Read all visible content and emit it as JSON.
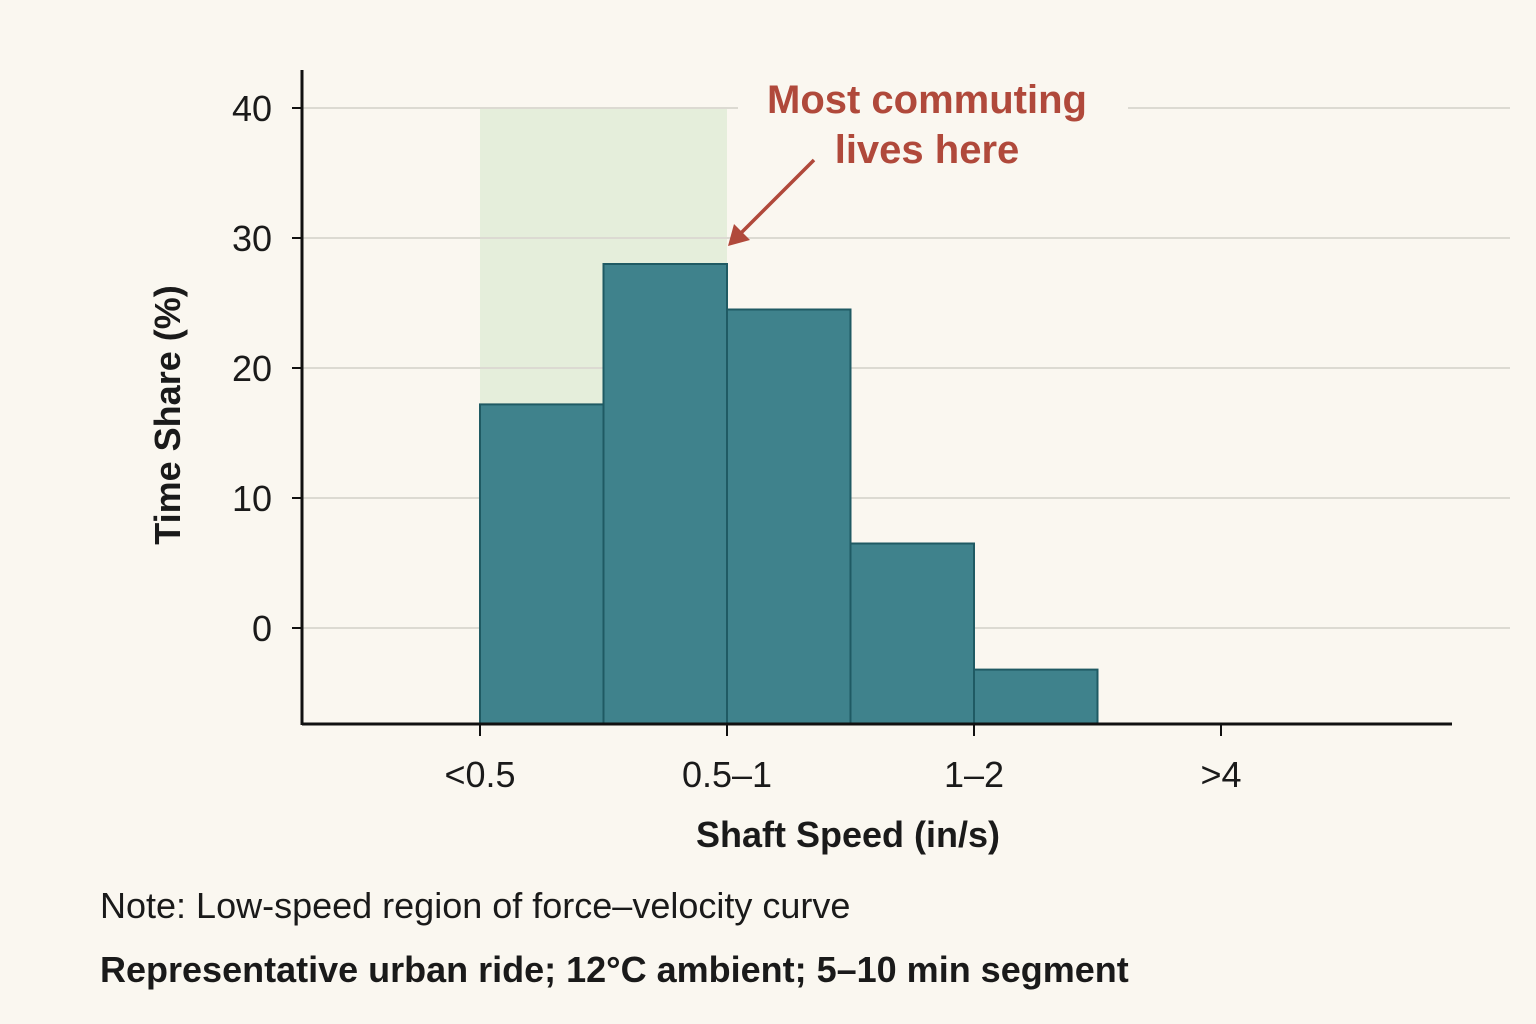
{
  "chart_data": {
    "type": "bar",
    "title": "",
    "xlabel": "Shaft Speed (in/s)",
    "ylabel": "Time Share (%)",
    "x_tick_labels": [
      "<0.5",
      "0.5–1",
      "1–2",
      ">4"
    ],
    "y_ticks": [
      0,
      10,
      20,
      30,
      40
    ],
    "ylim": [
      -7.4,
      43
    ],
    "grid": true,
    "bins": [
      {
        "from_tick": 0,
        "to_tick": 0.5,
        "value": 17.2
      },
      {
        "from_tick": 0.5,
        "to_tick": 1,
        "value": 28
      },
      {
        "from_tick": 1,
        "to_tick": 1.5,
        "value": 24.5
      },
      {
        "from_tick": 1.5,
        "to_tick": 2,
        "value": 6.5
      },
      {
        "from_tick": 2,
        "to_tick": 2.5,
        "value": -3.2
      }
    ],
    "highlight_region": {
      "from_label": "<0.5",
      "to_label": "0.5–1",
      "upper": 40
    },
    "annotation": {
      "line1": "Most commuting",
      "line2": "lives here"
    },
    "note": "Note: Low-speed region of force–velocity curve",
    "subnote": "Representative urban ride; 12°C ambient; 5–10 min segment",
    "colors": {
      "background": "#faf7f0",
      "bar": "#3f828c",
      "bar_edge": "#1f5a63",
      "highlight": "#e5eedb",
      "annotation": "#b0493b",
      "grid": "#dcdad2"
    }
  }
}
